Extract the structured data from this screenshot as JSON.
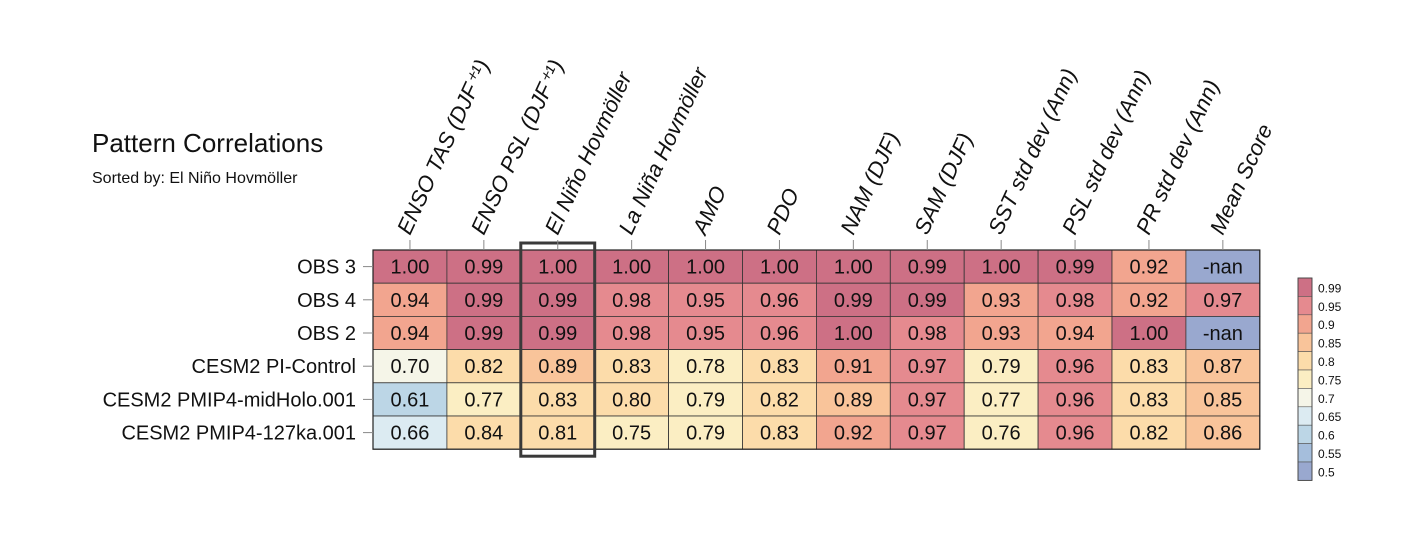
{
  "chart_data": {
    "type": "heatmap",
    "title": "Pattern Correlations",
    "subtitle": "Sorted by: El Niño Hovmöller",
    "columns": [
      "ENSO TAS (DJF⁺¹)",
      "ENSO PSL (DJF⁺¹)",
      "El Niño Hovmöller",
      "La Niña Hovmöller",
      "AMO",
      "PDO",
      "NAM (DJF)",
      "SAM (DJF)",
      "SST std dev (Ann)",
      "PSL std dev (Ann)",
      "PR std dev (Ann)",
      "Mean Score"
    ],
    "rows": [
      "OBS 3",
      "OBS 4",
      "OBS 2",
      "CESM2 PI-Control",
      "CESM2 PMIP4-midHolo.001",
      "CESM2 PMIP4-127ka.001"
    ],
    "values": [
      [
        "1.00",
        "0.99",
        "1.00",
        "1.00",
        "1.00",
        "1.00",
        "1.00",
        "0.99",
        "1.00",
        "0.99",
        "0.92",
        "-nan"
      ],
      [
        "0.94",
        "0.99",
        "0.99",
        "0.98",
        "0.95",
        "0.96",
        "0.99",
        "0.99",
        "0.93",
        "0.98",
        "0.92",
        "0.97"
      ],
      [
        "0.94",
        "0.99",
        "0.99",
        "0.98",
        "0.95",
        "0.96",
        "1.00",
        "0.98",
        "0.93",
        "0.94",
        "1.00",
        "-nan"
      ],
      [
        "0.70",
        "0.82",
        "0.89",
        "0.83",
        "0.78",
        "0.83",
        "0.91",
        "0.97",
        "0.79",
        "0.96",
        "0.83",
        "0.87"
      ],
      [
        "0.61",
        "0.77",
        "0.83",
        "0.80",
        "0.79",
        "0.82",
        "0.89",
        "0.97",
        "0.77",
        "0.96",
        "0.83",
        "0.85"
      ],
      [
        "0.66",
        "0.84",
        "0.81",
        "0.75",
        "0.79",
        "0.83",
        "0.92",
        "0.97",
        "0.76",
        "0.96",
        "0.82",
        "0.86"
      ]
    ],
    "highlighted_column": "El Niño Hovmöller",
    "colorbar": {
      "labels": [
        "0.99",
        "0.95",
        "0.9",
        "0.85",
        "0.8",
        "0.75",
        "0.7",
        "0.65",
        "0.6",
        "0.55",
        "0.5"
      ],
      "colors": [
        "#cd7085",
        "#e58a8f",
        "#f2a58f",
        "#f9c49a",
        "#fcdcaa",
        "#fbeec3",
        "#f5f5e8",
        "#dcebf2",
        "#bcd6e6",
        "#a5bedc",
        "#99a8cf"
      ]
    },
    "nan_color": "#99a8cf"
  }
}
